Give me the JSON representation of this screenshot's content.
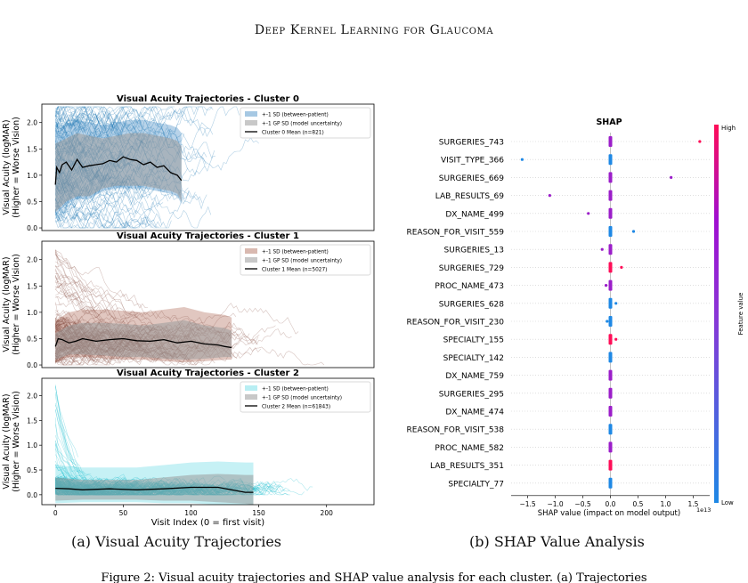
{
  "header": {
    "running_title": "Deep Kernel Learning for Glaucoma"
  },
  "captions": {
    "a": "(a) Visual Acuity Trajectories",
    "b": "(b) SHAP Value Analysis"
  },
  "footer_text": "Figure 2: Visual acuity trajectories and SHAP value analysis for each cluster. (a) Trajectories",
  "chart_data": [
    {
      "type": "line",
      "title": "Visual Acuity Trajectories - Cluster 0",
      "ylabel": "Visual Acuity (logMAR)\n(Higher = Worse Vision)",
      "ylabel_lines": [
        "Visual Acuity (logMAR)",
        "(Higher = Worse Vision)"
      ],
      "xlim": [
        -10,
        235
      ],
      "ylim": [
        -0.05,
        2.35
      ],
      "yticks": [
        "0.0",
        "0.5",
        "1.0",
        "1.5",
        "2.0"
      ],
      "color": "#1f77b4",
      "band_between_color": "#a6c8e3",
      "band_gp_color": "#9a9a9a",
      "legend": [
        "+-1 SD (between-patient)",
        "+-1 GP SD (model uncertainty)",
        "Cluster 0 Mean (n=821)"
      ],
      "mean_x": [
        0,
        1,
        3,
        5,
        8,
        12,
        16,
        20,
        25,
        30,
        35,
        40,
        45,
        50,
        55,
        60,
        65,
        70,
        75,
        80,
        85,
        90,
        93
      ],
      "mean_y": [
        0.82,
        1.15,
        1.05,
        1.2,
        1.25,
        1.1,
        1.3,
        1.15,
        1.18,
        1.2,
        1.22,
        1.28,
        1.25,
        1.35,
        1.3,
        1.28,
        1.2,
        1.25,
        1.15,
        1.18,
        1.05,
        1.0,
        0.9
      ],
      "gp_upper": [
        1.6,
        1.7,
        1.8,
        1.75,
        1.7,
        1.75,
        1.8,
        1.8,
        1.75,
        1.7,
        1.65,
        1.55
      ],
      "gp_lower": [
        0.3,
        0.5,
        0.6,
        0.6,
        0.75,
        0.8,
        0.8,
        0.8,
        0.75,
        0.7,
        0.65,
        0.5
      ],
      "gp_x": [
        0,
        8,
        16,
        25,
        35,
        45,
        55,
        65,
        75,
        85,
        90,
        93
      ],
      "xmax_traj": 155
    },
    {
      "type": "line",
      "title": "Visual Acuity Trajectories - Cluster 1",
      "ylabel": "Visual Acuity (logMAR)\n(Higher = Worse Vision)",
      "ylabel_lines": [
        "Visual Acuity (logMAR)",
        "(Higher = Worse Vision)"
      ],
      "xlim": [
        -10,
        235
      ],
      "ylim": [
        -0.05,
        2.35
      ],
      "yticks": [
        "0.0",
        "0.5",
        "1.0",
        "1.5",
        "2.0"
      ],
      "color": "#8c564b",
      "band_between_color": "#d9b9b0",
      "band_gp_color": "#9a9a9a",
      "legend": [
        "+-1 SD (between-patient)",
        "+-1 GP SD (model uncertainty)",
        "Cluster 1 Mean (n=5027)"
      ],
      "mean_x": [
        0,
        2,
        5,
        10,
        15,
        20,
        30,
        40,
        50,
        60,
        70,
        80,
        90,
        100,
        110,
        120,
        125,
        130
      ],
      "mean_y": [
        0.35,
        0.5,
        0.48,
        0.42,
        0.45,
        0.5,
        0.45,
        0.48,
        0.5,
        0.46,
        0.45,
        0.48,
        0.42,
        0.45,
        0.4,
        0.38,
        0.35,
        0.33
      ],
      "gp_upper": [
        0.6,
        0.75,
        0.8,
        0.8,
        0.78,
        0.75,
        0.8,
        0.85,
        0.75,
        0.7,
        0.65
      ],
      "gp_lower": [
        0.1,
        0.2,
        0.2,
        0.18,
        0.15,
        0.15,
        0.12,
        0.1,
        0.12,
        0.15,
        0.15
      ],
      "gp_x": [
        0,
        10,
        20,
        35,
        50,
        65,
        80,
        95,
        110,
        125,
        130
      ],
      "xmax_traj": 200
    },
    {
      "type": "line",
      "title": "Visual Acuity Trajectories - Cluster 2",
      "ylabel": "Visual Acuity (logMAR)\n(Higher = Worse Vision)",
      "ylabel_lines": [
        "Visual Acuity (logMAR)",
        "(Higher = Worse Vision)"
      ],
      "xlabel": "Visit Index (0 = first visit)",
      "xticks": [
        "0",
        "50",
        "100",
        "150",
        "200"
      ],
      "xlim": [
        -10,
        235
      ],
      "ylim": [
        -0.2,
        2.35
      ],
      "yticks": [
        "0.0",
        "0.5",
        "1.0",
        "1.5",
        "2.0"
      ],
      "color": "#17becf",
      "band_between_color": "#b8eef3",
      "band_gp_color": "#9a9a9a",
      "legend": [
        "+-1 SD (between-patient)",
        "+-1 GP SD (model uncertainty)",
        "Cluster 2 Mean (n=61843)"
      ],
      "mean_x": [
        0,
        10,
        20,
        40,
        60,
        80,
        100,
        120,
        140,
        146
      ],
      "mean_y": [
        0.13,
        0.12,
        0.1,
        0.12,
        0.1,
        0.12,
        0.15,
        0.15,
        0.05,
        0.05
      ],
      "gp_upper": [
        0.35,
        0.3,
        0.3,
        0.3,
        0.35,
        0.4,
        0.42,
        0.4,
        0.4
      ],
      "gp_lower": [
        -0.12,
        -0.1,
        -0.1,
        -0.1,
        -0.12,
        -0.12,
        -0.15,
        -0.18,
        -0.2
      ],
      "gp_x": [
        0,
        20,
        40,
        60,
        80,
        100,
        120,
        140,
        146
      ],
      "xmax_traj": 230
    },
    {
      "type": "scatter",
      "title": "SHAP",
      "xlabel": "SHAP value (impact on model output)",
      "x_offset_text": "1e13",
      "xticks": [
        "−1.5",
        "−1.0",
        "−0.5",
        "0.0",
        "0.5",
        "1.0",
        "1.5"
      ],
      "xlim": [
        -1.8,
        1.8
      ],
      "colorbar": {
        "high": "High",
        "low": "Low",
        "label": "Feature value",
        "colors": [
          "#1e88e5",
          "#ff0d57"
        ]
      },
      "features": [
        "SURGERIES_743",
        "VISIT_TYPE_366",
        "SURGERIES_669",
        "LAB_RESULTS_69",
        "DX_NAME_499",
        "REASON_FOR_VISIT_559",
        "SURGERIES_13",
        "SURGERIES_729",
        "PROC_NAME_473",
        "SURGERIES_628",
        "REASON_FOR_VISIT_230",
        "SPECIALTY_155",
        "SPECIALTY_142",
        "DX_NAME_759",
        "SURGERIES_295",
        "DX_NAME_474",
        "REASON_FOR_VISIT_538",
        "PROC_NAME_582",
        "LAB_RESULTS_351",
        "SPECIALTY_77"
      ],
      "outliers": [
        {
          "feature": "SURGERIES_743",
          "value": 1.62,
          "feature_level": 0.9
        },
        {
          "feature": "VISIT_TYPE_366",
          "value": -1.6,
          "feature_level": 0.05
        },
        {
          "feature": "SURGERIES_669",
          "value": 1.1,
          "feature_level": 0.55
        },
        {
          "feature": "LAB_RESULTS_69",
          "value": -1.1,
          "feature_level": 0.6
        },
        {
          "feature": "DX_NAME_499",
          "value": -0.4,
          "feature_level": 0.55
        },
        {
          "feature": "REASON_FOR_VISIT_559",
          "value": 0.42,
          "feature_level": 0.1
        },
        {
          "feature": "SURGERIES_13",
          "value": -0.15,
          "feature_level": 0.6
        },
        {
          "feature": "SURGERIES_729",
          "value": 0.2,
          "feature_level": 0.8
        },
        {
          "feature": "PROC_NAME_473",
          "value": -0.08,
          "feature_level": 0.55
        },
        {
          "feature": "SURGERIES_628",
          "value": 0.1,
          "feature_level": 0.1
        },
        {
          "feature": "REASON_FOR_VISIT_230",
          "value": -0.06,
          "feature_level": 0.1
        },
        {
          "feature": "SPECIALTY_155",
          "value": 0.1,
          "feature_level": 0.8
        }
      ],
      "feature_levels": [
        0.55,
        0.1,
        0.55,
        0.55,
        0.55,
        0.1,
        0.55,
        0.85,
        0.55,
        0.1,
        0.1,
        0.85,
        0.1,
        0.55,
        0.55,
        0.55,
        0.1,
        0.55,
        0.85,
        0.1
      ]
    }
  ]
}
